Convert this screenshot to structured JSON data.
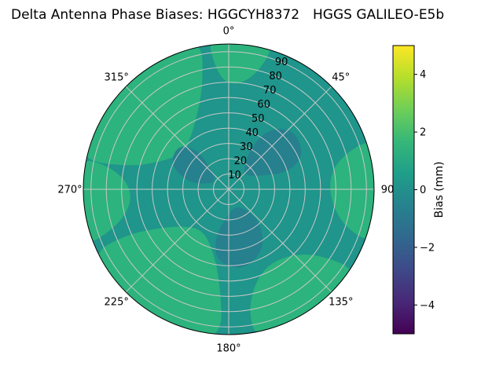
{
  "title": {
    "main": "Delta Antenna Phase Biases: HGGCYH8372",
    "station": "HGGS GALILEO-E5b"
  },
  "chart_data": {
    "type": "polar_contour",
    "description": "Filled-contour polar plot of antenna phase bias (mm) versus azimuth (0-360 deg) and zenith-like radius (0-95). Mostly ~0 to 1 mm (teal) with patches of 1-2 mm (green) near the rim and slightly negative patches (blue-teal) at mid radius.",
    "angular_tick_labels": [
      {
        "angle_deg": 0,
        "label": "0°"
      },
      {
        "angle_deg": 45,
        "label": "45°"
      },
      {
        "angle_deg": 90,
        "label": "90"
      },
      {
        "angle_deg": 135,
        "label": "135°"
      },
      {
        "angle_deg": 180,
        "label": "180°"
      },
      {
        "angle_deg": 225,
        "label": "225°"
      },
      {
        "angle_deg": 270,
        "label": "270°"
      },
      {
        "angle_deg": 315,
        "label": "315°"
      }
    ],
    "radial_ticks": [
      {
        "value": 10,
        "label": "10"
      },
      {
        "value": 20,
        "label": "20"
      },
      {
        "value": 30,
        "label": "30"
      },
      {
        "value": 40,
        "label": "40"
      },
      {
        "value": 50,
        "label": "50"
      },
      {
        "value": 60,
        "label": "60"
      },
      {
        "value": 70,
        "label": "70"
      },
      {
        "value": 80,
        "label": "80"
      },
      {
        "value": 90,
        "label": "90"
      }
    ],
    "radial_max": 95,
    "radial_label_angle_deg": 22.5,
    "grid_color": "#c8c8c8",
    "levels": {
      "base_color": "#1f958b",
      "high_color": "#2db37d",
      "low_color": "#26808e",
      "base_band_mm": "0 to 1",
      "high_band_mm": "1 to 2",
      "low_band_mm": "-1 to 0"
    },
    "regions": [
      {
        "level": "high",
        "points": [
          [
            281,
            100
          ],
          [
            283,
            66
          ],
          [
            292,
            48
          ],
          [
            308,
            38
          ],
          [
            324,
            42
          ],
          [
            338,
            54
          ],
          [
            346,
            70
          ],
          [
            350,
            100
          ],
          [
            335,
            103
          ],
          [
            315,
            104
          ],
          [
            297,
            103
          ]
        ]
      },
      {
        "level": "high",
        "points": [
          [
            352,
            100
          ],
          [
            354,
            78
          ],
          [
            0,
            68
          ],
          [
            10,
            72
          ],
          [
            16,
            86
          ],
          [
            17,
            100
          ],
          [
            8,
            103
          ],
          [
            359,
            103
          ]
        ]
      },
      {
        "level": "high",
        "points": [
          [
            70,
            100
          ],
          [
            74,
            76
          ],
          [
            84,
            66
          ],
          [
            98,
            68
          ],
          [
            108,
            80
          ],
          [
            111,
            100
          ],
          [
            97,
            104
          ],
          [
            82,
            103
          ]
        ]
      },
      {
        "level": "high",
        "points": [
          [
            122,
            100
          ],
          [
            126,
            72
          ],
          [
            138,
            58
          ],
          [
            154,
            56
          ],
          [
            166,
            66
          ],
          [
            171,
            84
          ],
          [
            169,
            100
          ],
          [
            150,
            104
          ],
          [
            134,
            103
          ]
        ]
      },
      {
        "level": "high",
        "points": [
          [
            182,
            100
          ],
          [
            186,
            58
          ],
          [
            196,
            40
          ],
          [
            212,
            32
          ],
          [
            228,
            36
          ],
          [
            240,
            50
          ],
          [
            246,
            72
          ],
          [
            245,
            100
          ],
          [
            226,
            104
          ],
          [
            204,
            104
          ]
        ]
      },
      {
        "level": "high",
        "points": [
          [
            248,
            100
          ],
          [
            252,
            76
          ],
          [
            262,
            64
          ],
          [
            274,
            66
          ],
          [
            281,
            80
          ],
          [
            282,
            100
          ],
          [
            268,
            104
          ],
          [
            256,
            103
          ]
        ]
      },
      {
        "level": "low",
        "points": [
          [
            34,
            18
          ],
          [
            52,
            14
          ],
          [
            68,
            24
          ],
          [
            74,
            40
          ],
          [
            66,
            54
          ],
          [
            48,
            58
          ],
          [
            34,
            48
          ],
          [
            28,
            32
          ]
        ]
      },
      {
        "level": "low",
        "points": [
          [
            140,
            16
          ],
          [
            162,
            12
          ],
          [
            184,
            18
          ],
          [
            196,
            32
          ],
          [
            190,
            48
          ],
          [
            170,
            54
          ],
          [
            150,
            46
          ],
          [
            136,
            30
          ]
        ]
      },
      {
        "level": "low",
        "points": [
          [
            284,
            14
          ],
          [
            304,
            10
          ],
          [
            318,
            18
          ],
          [
            322,
            32
          ],
          [
            312,
            44
          ],
          [
            294,
            42
          ],
          [
            280,
            28
          ]
        ]
      }
    ],
    "colorbar": {
      "label": "Bias (mm)",
      "vmin": -5,
      "vmax": 5,
      "ticks": [
        {
          "value": -4,
          "label": "−4"
        },
        {
          "value": -2,
          "label": "−2"
        },
        {
          "value": 0,
          "label": "0"
        },
        {
          "value": 2,
          "label": "2"
        },
        {
          "value": 4,
          "label": "4"
        }
      ],
      "colors": [
        "#440154",
        "#482878",
        "#3e4989",
        "#31688e",
        "#26828e",
        "#1f9e89",
        "#35b779",
        "#6ece58",
        "#b5de2b",
        "#fde725"
      ]
    }
  }
}
